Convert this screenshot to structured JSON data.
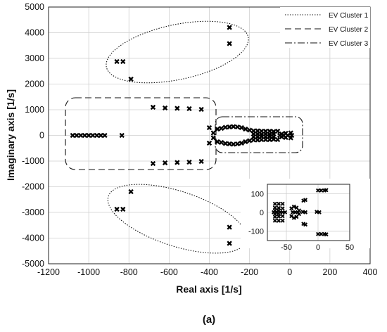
{
  "chart_data": [
    {
      "type": "scatter",
      "title": "",
      "xlabel": "Real axis [1/s]",
      "ylabel": "Imaginary axis [1/s]",
      "xlim": [
        -1200,
        400
      ],
      "ylim": [
        -5000,
        5000
      ],
      "xticks": [
        -1200,
        -1000,
        -800,
        -600,
        -400,
        -200,
        0,
        200,
        400
      ],
      "yticks": [
        -5000,
        -4000,
        -3000,
        -2000,
        -1000,
        0,
        1000,
        2000,
        3000,
        4000,
        5000
      ],
      "xtick_labels": [
        "-1200",
        "-1000",
        "-800",
        "-600",
        "-400",
        "-200",
        "0",
        "200",
        "400"
      ],
      "ytick_labels": [
        "-5000",
        "-4000",
        "-3000",
        "-2000",
        "-1000",
        "0",
        "1000",
        "2000",
        "3000",
        "4000",
        "5000"
      ],
      "grid": true,
      "marker": "x",
      "legend_position": "top-right",
      "legend": [
        {
          "name": "EV Cluster 1",
          "style": "dotted"
        },
        {
          "name": "EV Cluster 2",
          "style": "dashed"
        },
        {
          "name": "EV Cluster 3",
          "style": "dashdot"
        }
      ],
      "points": [
        [
          -300,
          4200
        ],
        [
          -300,
          3580
        ],
        [
          -860,
          2880
        ],
        [
          -830,
          2880
        ],
        [
          -790,
          2190
        ],
        [
          -300,
          -4200
        ],
        [
          -300,
          -3580
        ],
        [
          -860,
          -2880
        ],
        [
          -830,
          -2880
        ],
        [
          -790,
          -2190
        ],
        [
          -1080,
          0
        ],
        [
          -1060,
          0
        ],
        [
          -1040,
          0
        ],
        [
          -1020,
          0
        ],
        [
          -1000,
          0
        ],
        [
          -980,
          0
        ],
        [
          -960,
          0
        ],
        [
          -940,
          0
        ],
        [
          -920,
          0
        ],
        [
          -835,
          0
        ],
        [
          -680,
          1100
        ],
        [
          -620,
          1070
        ],
        [
          -560,
          1050
        ],
        [
          -500,
          1040
        ],
        [
          -440,
          1020
        ],
        [
          -680,
          -1100
        ],
        [
          -620,
          -1070
        ],
        [
          -560,
          -1050
        ],
        [
          -500,
          -1040
        ],
        [
          -440,
          -1020
        ],
        [
          -400,
          300
        ],
        [
          -400,
          -300
        ],
        [
          -360,
          250
        ],
        [
          -340,
          280
        ],
        [
          -320,
          310
        ],
        [
          -300,
          330
        ],
        [
          -280,
          340
        ],
        [
          -260,
          330
        ],
        [
          -240,
          300
        ],
        [
          -220,
          250
        ],
        [
          -360,
          -250
        ],
        [
          -340,
          -280
        ],
        [
          -320,
          -310
        ],
        [
          -300,
          -330
        ],
        [
          -280,
          -340
        ],
        [
          -260,
          -330
        ],
        [
          -240,
          -300
        ],
        [
          -220,
          -250
        ],
        [
          -380,
          100
        ],
        [
          -380,
          -100
        ],
        [
          -200,
          200
        ],
        [
          -200,
          -200
        ],
        [
          -180,
          180
        ],
        [
          -160,
          180
        ],
        [
          -140,
          160
        ],
        [
          -120,
          170
        ],
        [
          -100,
          160
        ],
        [
          -80,
          150
        ],
        [
          -60,
          160
        ],
        [
          -180,
          -180
        ],
        [
          -160,
          -180
        ],
        [
          -140,
          -160
        ],
        [
          -120,
          -170
        ],
        [
          -100,
          -160
        ],
        [
          -80,
          -150
        ],
        [
          -60,
          -160
        ],
        [
          -180,
          60
        ],
        [
          -160,
          60
        ],
        [
          -140,
          40
        ],
        [
          -120,
          50
        ],
        [
          -100,
          40
        ],
        [
          -80,
          50
        ],
        [
          -180,
          -60
        ],
        [
          -160,
          -60
        ],
        [
          -140,
          -40
        ],
        [
          -120,
          -50
        ],
        [
          -100,
          -40
        ],
        [
          -80,
          -50
        ],
        [
          -50,
          0
        ],
        [
          -40,
          60
        ],
        [
          -40,
          -60
        ],
        [
          -30,
          0
        ],
        [
          -20,
          80
        ],
        [
          -20,
          -80
        ],
        [
          -10,
          0
        ],
        [
          5,
          100
        ],
        [
          5,
          -100
        ],
        [
          10,
          0
        ]
      ]
    },
    {
      "type": "scatter",
      "title": "",
      "xlim": [
        -80,
        50
      ],
      "ylim": [
        -150,
        150
      ],
      "xticks": [
        -50,
        0,
        50
      ],
      "yticks": [
        -100,
        0,
        100
      ],
      "xtick_labels": [
        "-50",
        "0",
        "50"
      ],
      "ytick_labels": [
        "-100",
        "0",
        "100"
      ],
      "grid": true,
      "marker": "x",
      "points": [
        [
          -68,
          45
        ],
        [
          -68,
          -45
        ],
        [
          -62,
          45
        ],
        [
          -62,
          -45
        ],
        [
          -56,
          45
        ],
        [
          -56,
          -45
        ],
        [
          -68,
          25
        ],
        [
          -68,
          -25
        ],
        [
          -62,
          22
        ],
        [
          -62,
          -22
        ],
        [
          -56,
          20
        ],
        [
          -56,
          -20
        ],
        [
          -70,
          0
        ],
        [
          -66,
          0
        ],
        [
          -60,
          0
        ],
        [
          -56,
          0
        ],
        [
          -52,
          0
        ],
        [
          -68,
          10
        ],
        [
          -68,
          -10
        ],
        [
          -62,
          8
        ],
        [
          -62,
          -8
        ],
        [
          -42,
          20
        ],
        [
          -42,
          -20
        ],
        [
          -38,
          30
        ],
        [
          -38,
          -30
        ],
        [
          -34,
          25
        ],
        [
          -34,
          -25
        ],
        [
          -40,
          0
        ],
        [
          -36,
          0
        ],
        [
          -32,
          0
        ],
        [
          -30,
          10
        ],
        [
          -30,
          -10
        ],
        [
          -23,
          62
        ],
        [
          -23,
          -62
        ],
        [
          -20,
          65
        ],
        [
          -20,
          -65
        ],
        [
          -24,
          2
        ],
        [
          -20,
          0
        ],
        [
          -2,
          2
        ],
        [
          2,
          0
        ],
        [
          0,
          117
        ],
        [
          0,
          -117
        ],
        [
          5,
          117
        ],
        [
          5,
          -117
        ],
        [
          10,
          117
        ],
        [
          10,
          -117
        ],
        [
          13,
          118
        ],
        [
          13,
          -118
        ]
      ]
    }
  ],
  "caption": "(a)"
}
